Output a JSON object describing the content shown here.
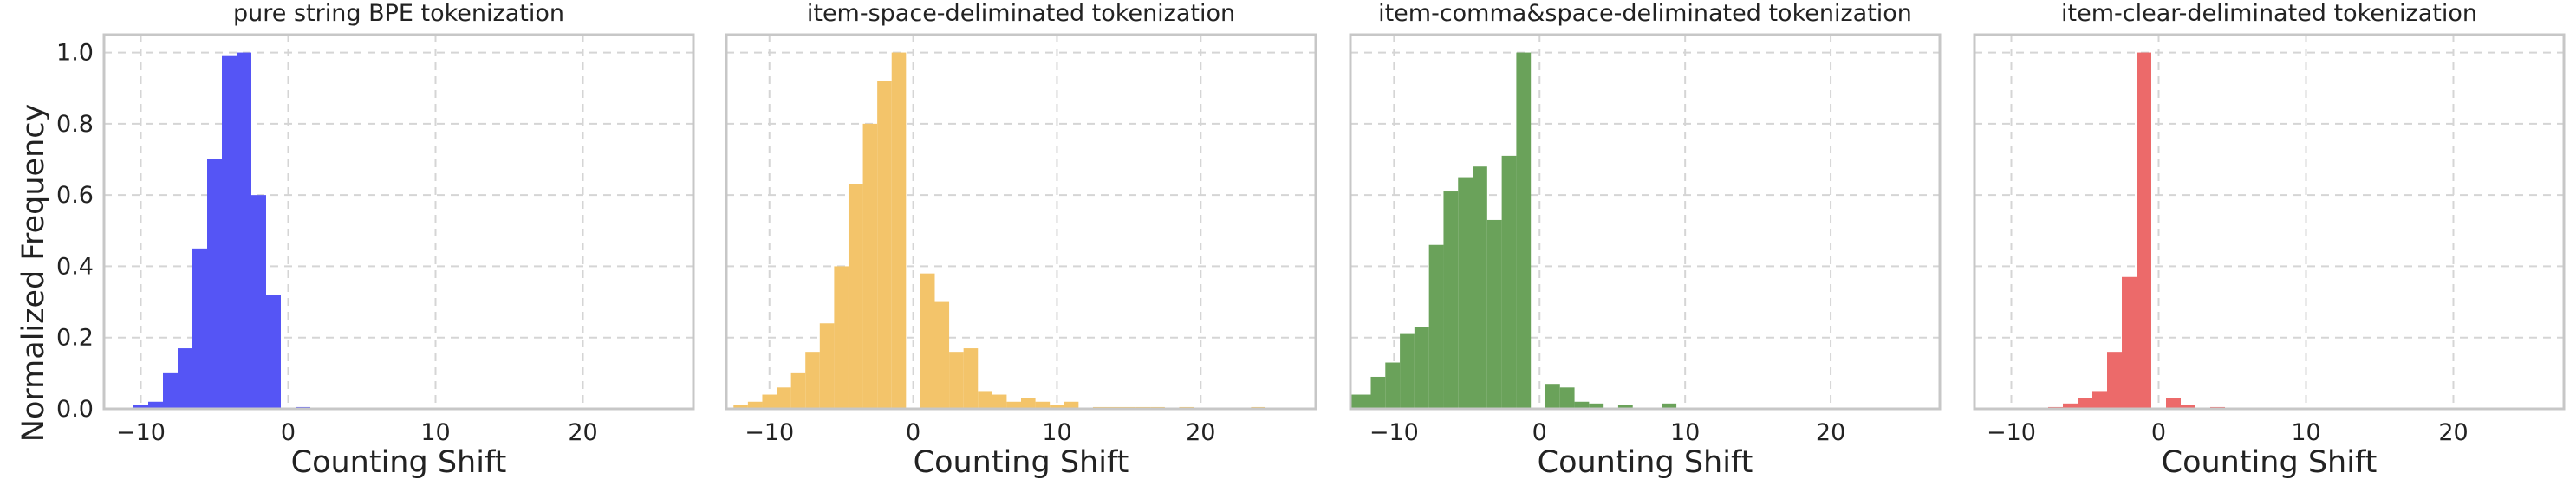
{
  "figure": {
    "ylabel": "Normalized Frequency"
  },
  "chart_data": [
    {
      "type": "bar",
      "title": "pure string BPE tokenization",
      "xlabel": "Counting Shift",
      "ylabel": "Normalized Frequency",
      "color": "#5555f5",
      "xlim": [
        -12.5,
        27.5
      ],
      "ylim": [
        0,
        1.05
      ],
      "xticks": [
        -10,
        0,
        10,
        20
      ],
      "yticks": [
        0.0,
        0.2,
        0.4,
        0.6,
        0.8,
        1.0
      ],
      "grid": true,
      "bins": [
        {
          "x0": -10.5,
          "x1": -9.5,
          "value": 0.01
        },
        {
          "x0": -9.5,
          "x1": -8.5,
          "value": 0.02
        },
        {
          "x0": -8.5,
          "x1": -7.5,
          "value": 0.1
        },
        {
          "x0": -7.5,
          "x1": -6.5,
          "value": 0.17
        },
        {
          "x0": -6.5,
          "x1": -5.5,
          "value": 0.45
        },
        {
          "x0": -5.5,
          "x1": -4.5,
          "value": 0.7
        },
        {
          "x0": -4.5,
          "x1": -3.5,
          "value": 0.99
        },
        {
          "x0": -3.5,
          "x1": -2.5,
          "value": 1.0
        },
        {
          "x0": -2.5,
          "x1": -1.5,
          "value": 0.6
        },
        {
          "x0": -1.5,
          "x1": -0.5,
          "value": 0.32
        },
        {
          "x0": 0.5,
          "x1": 1.5,
          "value": 0.005
        }
      ]
    },
    {
      "type": "bar",
      "title": "item-space-deliminated tokenization",
      "xlabel": "Counting Shift",
      "color": "#f3c46a",
      "xlim": [
        -13,
        28
      ],
      "ylim": [
        0,
        1.05
      ],
      "xticks": [
        -10,
        0,
        10,
        20
      ],
      "yticks": [
        0.0,
        0.2,
        0.4,
        0.6,
        0.8,
        1.0
      ],
      "grid": true,
      "bins": [
        {
          "x0": -12.5,
          "x1": -11.5,
          "value": 0.01
        },
        {
          "x0": -11.5,
          "x1": -10.5,
          "value": 0.02
        },
        {
          "x0": -10.5,
          "x1": -9.5,
          "value": 0.04
        },
        {
          "x0": -9.5,
          "x1": -8.5,
          "value": 0.06
        },
        {
          "x0": -8.5,
          "x1": -7.5,
          "value": 0.1
        },
        {
          "x0": -7.5,
          "x1": -6.5,
          "value": 0.16
        },
        {
          "x0": -6.5,
          "x1": -5.5,
          "value": 0.24
        },
        {
          "x0": -5.5,
          "x1": -4.5,
          "value": 0.4
        },
        {
          "x0": -4.5,
          "x1": -3.5,
          "value": 0.63
        },
        {
          "x0": -3.5,
          "x1": -2.5,
          "value": 0.8
        },
        {
          "x0": -2.5,
          "x1": -1.5,
          "value": 0.92
        },
        {
          "x0": -1.5,
          "x1": -0.5,
          "value": 1.0
        },
        {
          "x0": 0.5,
          "x1": 1.5,
          "value": 0.38
        },
        {
          "x0": 1.5,
          "x1": 2.5,
          "value": 0.3
        },
        {
          "x0": 2.5,
          "x1": 3.5,
          "value": 0.16
        },
        {
          "x0": 3.5,
          "x1": 4.5,
          "value": 0.17
        },
        {
          "x0": 4.5,
          "x1": 5.5,
          "value": 0.05
        },
        {
          "x0": 5.5,
          "x1": 6.5,
          "value": 0.04
        },
        {
          "x0": 6.5,
          "x1": 7.5,
          "value": 0.02
        },
        {
          "x0": 7.5,
          "x1": 8.5,
          "value": 0.03
        },
        {
          "x0": 8.5,
          "x1": 9.5,
          "value": 0.02
        },
        {
          "x0": 9.5,
          "x1": 10.5,
          "value": 0.01
        },
        {
          "x0": 10.5,
          "x1": 11.5,
          "value": 0.02
        },
        {
          "x0": 12.5,
          "x1": 13.5,
          "value": 0.005
        },
        {
          "x0": 13.5,
          "x1": 14.5,
          "value": 0.005
        },
        {
          "x0": 14.5,
          "x1": 15.5,
          "value": 0.005
        },
        {
          "x0": 15.5,
          "x1": 16.5,
          "value": 0.005
        },
        {
          "x0": 16.5,
          "x1": 17.5,
          "value": 0.005
        },
        {
          "x0": 18.5,
          "x1": 19.5,
          "value": 0.005
        },
        {
          "x0": 23.5,
          "x1": 24.5,
          "value": 0.005
        }
      ]
    },
    {
      "type": "bar",
      "title": "item-comma&space-deliminated tokenization",
      "xlabel": "Counting Shift",
      "color": "#6aa25a",
      "xlim": [
        -13,
        27.5
      ],
      "ylim": [
        0,
        1.05
      ],
      "xticks": [
        -10,
        0,
        10,
        20
      ],
      "yticks": [
        0.0,
        0.2,
        0.4,
        0.6,
        0.8,
        1.0
      ],
      "grid": true,
      "bins": [
        {
          "x0": -13,
          "x1": -11.6,
          "value": 0.04
        },
        {
          "x0": -11.6,
          "x1": -10.6,
          "value": 0.09
        },
        {
          "x0": -10.6,
          "x1": -9.6,
          "value": 0.13
        },
        {
          "x0": -9.6,
          "x1": -8.6,
          "value": 0.21
        },
        {
          "x0": -8.6,
          "x1": -7.6,
          "value": 0.23
        },
        {
          "x0": -7.6,
          "x1": -6.6,
          "value": 0.46
        },
        {
          "x0": -6.6,
          "x1": -5.6,
          "value": 0.61
        },
        {
          "x0": -5.6,
          "x1": -4.6,
          "value": 0.65
        },
        {
          "x0": -4.6,
          "x1": -3.6,
          "value": 0.68
        },
        {
          "x0": -3.6,
          "x1": -2.6,
          "value": 0.53
        },
        {
          "x0": -2.6,
          "x1": -1.6,
          "value": 0.71
        },
        {
          "x0": -1.6,
          "x1": -0.6,
          "value": 1.0
        },
        {
          "x0": 0.4,
          "x1": 1.4,
          "value": 0.07
        },
        {
          "x0": 1.4,
          "x1": 2.4,
          "value": 0.06
        },
        {
          "x0": 2.4,
          "x1": 3.4,
          "value": 0.02
        },
        {
          "x0": 3.4,
          "x1": 4.4,
          "value": 0.015
        },
        {
          "x0": 5.4,
          "x1": 6.4,
          "value": 0.01
        },
        {
          "x0": 8.4,
          "x1": 9.4,
          "value": 0.015
        }
      ]
    },
    {
      "type": "bar",
      "title": "item-clear-deliminated tokenization",
      "xlabel": "Counting Shift",
      "color": "#ec6a6a",
      "xlim": [
        -12.5,
        27.5
      ],
      "ylim": [
        0,
        1.05
      ],
      "xticks": [
        -10,
        0,
        10,
        20
      ],
      "yticks": [
        0.0,
        0.2,
        0.4,
        0.6,
        0.8,
        1.0
      ],
      "grid": true,
      "bins": [
        {
          "x0": -7.5,
          "x1": -6.5,
          "value": 0.005
        },
        {
          "x0": -6.5,
          "x1": -5.5,
          "value": 0.015
        },
        {
          "x0": -5.5,
          "x1": -4.5,
          "value": 0.03
        },
        {
          "x0": -4.5,
          "x1": -3.5,
          "value": 0.05
        },
        {
          "x0": -3.5,
          "x1": -2.5,
          "value": 0.16
        },
        {
          "x0": -2.5,
          "x1": -1.5,
          "value": 0.37
        },
        {
          "x0": -1.5,
          "x1": -0.5,
          "value": 1.0
        },
        {
          "x0": 0.5,
          "x1": 1.5,
          "value": 0.03
        },
        {
          "x0": 1.5,
          "x1": 2.5,
          "value": 0.01
        },
        {
          "x0": 3.5,
          "x1": 4.5,
          "value": 0.005
        }
      ]
    }
  ]
}
